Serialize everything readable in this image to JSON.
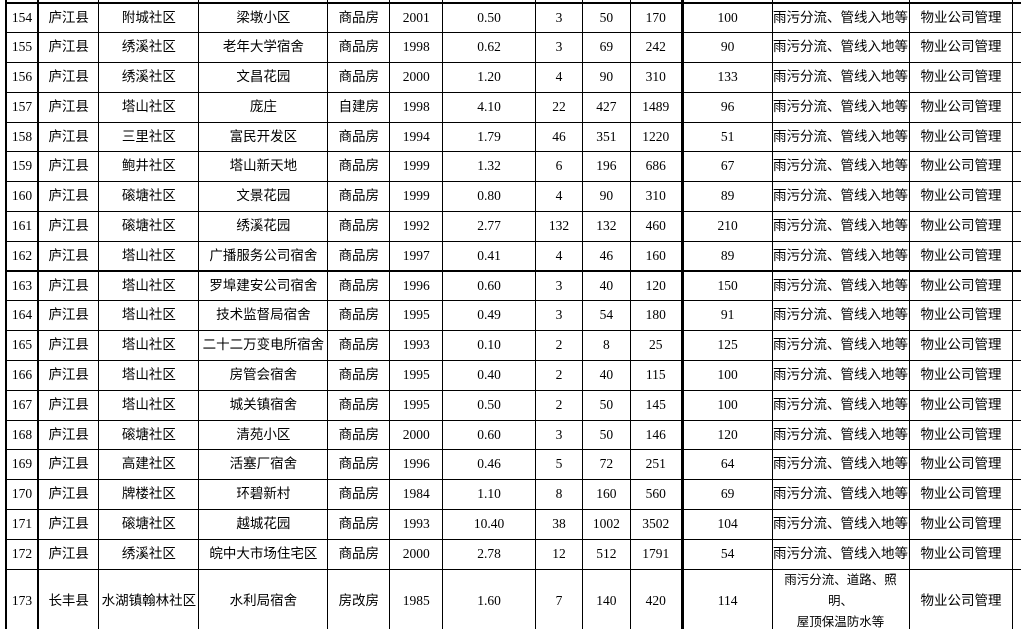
{
  "colors": {
    "background": "#ffffff",
    "grid_line": "#000000",
    "text": "#000000"
  },
  "table": {
    "rows": [
      [
        "154",
        "庐江县",
        "附城社区",
        "梁墩小区",
        "商品房",
        "2001",
        "0.50",
        "3",
        "50",
        "170",
        "100",
        "雨污分流、管线入地等",
        "物业公司管理"
      ],
      [
        "155",
        "庐江县",
        "绣溪社区",
        "老年大学宿舍",
        "商品房",
        "1998",
        "0.62",
        "3",
        "69",
        "242",
        "90",
        "雨污分流、管线入地等",
        "物业公司管理"
      ],
      [
        "156",
        "庐江县",
        "绣溪社区",
        "文昌花园",
        "商品房",
        "2000",
        "1.20",
        "4",
        "90",
        "310",
        "133",
        "雨污分流、管线入地等",
        "物业公司管理"
      ],
      [
        "157",
        "庐江县",
        "塔山社区",
        "庞庄",
        "自建房",
        "1998",
        "4.10",
        "22",
        "427",
        "1489",
        "96",
        "雨污分流、管线入地等",
        "物业公司管理"
      ],
      [
        "158",
        "庐江县",
        "三里社区",
        "富民开发区",
        "商品房",
        "1994",
        "1.79",
        "46",
        "351",
        "1220",
        "51",
        "雨污分流、管线入地等",
        "物业公司管理"
      ],
      [
        "159",
        "庐江县",
        "鲍井社区",
        "塔山新天地",
        "商品房",
        "1999",
        "1.32",
        "6",
        "196",
        "686",
        "67",
        "雨污分流、管线入地等",
        "物业公司管理"
      ],
      [
        "160",
        "庐江县",
        "磙塘社区",
        "文景花园",
        "商品房",
        "1999",
        "0.80",
        "4",
        "90",
        "310",
        "89",
        "雨污分流、管线入地等",
        "物业公司管理"
      ],
      [
        "161",
        "庐江县",
        "磙塘社区",
        "绣溪花园",
        "商品房",
        "1992",
        "2.77",
        "132",
        "132",
        "460",
        "210",
        "雨污分流、管线入地等",
        "物业公司管理"
      ],
      [
        "162",
        "庐江县",
        "塔山社区",
        "广播服务公司宿舍",
        "商品房",
        "1997",
        "0.41",
        "4",
        "46",
        "160",
        "89",
        "雨污分流、管线入地等",
        "物业公司管理"
      ],
      [
        "163",
        "庐江县",
        "塔山社区",
        "罗埠建安公司宿舍",
        "商品房",
        "1996",
        "0.60",
        "3",
        "40",
        "120",
        "150",
        "雨污分流、管线入地等",
        "物业公司管理"
      ],
      [
        "164",
        "庐江县",
        "塔山社区",
        "技术监督局宿舍",
        "商品房",
        "1995",
        "0.49",
        "3",
        "54",
        "180",
        "91",
        "雨污分流、管线入地等",
        "物业公司管理"
      ],
      [
        "165",
        "庐江县",
        "塔山社区",
        "二十二万变电所宿舍",
        "商品房",
        "1993",
        "0.10",
        "2",
        "8",
        "25",
        "125",
        "雨污分流、管线入地等",
        "物业公司管理"
      ],
      [
        "166",
        "庐江县",
        "塔山社区",
        "房管会宿舍",
        "商品房",
        "1995",
        "0.40",
        "2",
        "40",
        "115",
        "100",
        "雨污分流、管线入地等",
        "物业公司管理"
      ],
      [
        "167",
        "庐江县",
        "塔山社区",
        "城关镇宿舍",
        "商品房",
        "1995",
        "0.50",
        "2",
        "50",
        "145",
        "100",
        "雨污分流、管线入地等",
        "物业公司管理"
      ],
      [
        "168",
        "庐江县",
        "磙塘社区",
        "清苑小区",
        "商品房",
        "2000",
        "0.60",
        "3",
        "50",
        "146",
        "120",
        "雨污分流、管线入地等",
        "物业公司管理"
      ],
      [
        "169",
        "庐江县",
        "高建社区",
        "活塞厂宿舍",
        "商品房",
        "1996",
        "0.46",
        "5",
        "72",
        "251",
        "64",
        "雨污分流、管线入地等",
        "物业公司管理"
      ],
      [
        "170",
        "庐江县",
        "牌楼社区",
        "环碧新村",
        "商品房",
        "1984",
        "1.10",
        "8",
        "160",
        "560",
        "69",
        "雨污分流、管线入地等",
        "物业公司管理"
      ],
      [
        "171",
        "庐江县",
        "磙塘社区",
        "越城花园",
        "商品房",
        "1993",
        "10.40",
        "38",
        "1002",
        "3502",
        "104",
        "雨污分流、管线入地等",
        "物业公司管理"
      ],
      [
        "172",
        "庐江县",
        "绣溪社区",
        "皖中大市场住宅区",
        "商品房",
        "2000",
        "2.78",
        "12",
        "512",
        "1791",
        "54",
        "雨污分流、管线入地等",
        "物业公司管理"
      ],
      [
        "173",
        "长丰县",
        "水湖镇翰林社区",
        "水利局宿舍",
        "房改房",
        "1985",
        "1.60",
        "7",
        "140",
        "420",
        "114",
        "雨污分流、道路、照明、\n屋顶保温防水等",
        "物业公司管理"
      ]
    ]
  }
}
